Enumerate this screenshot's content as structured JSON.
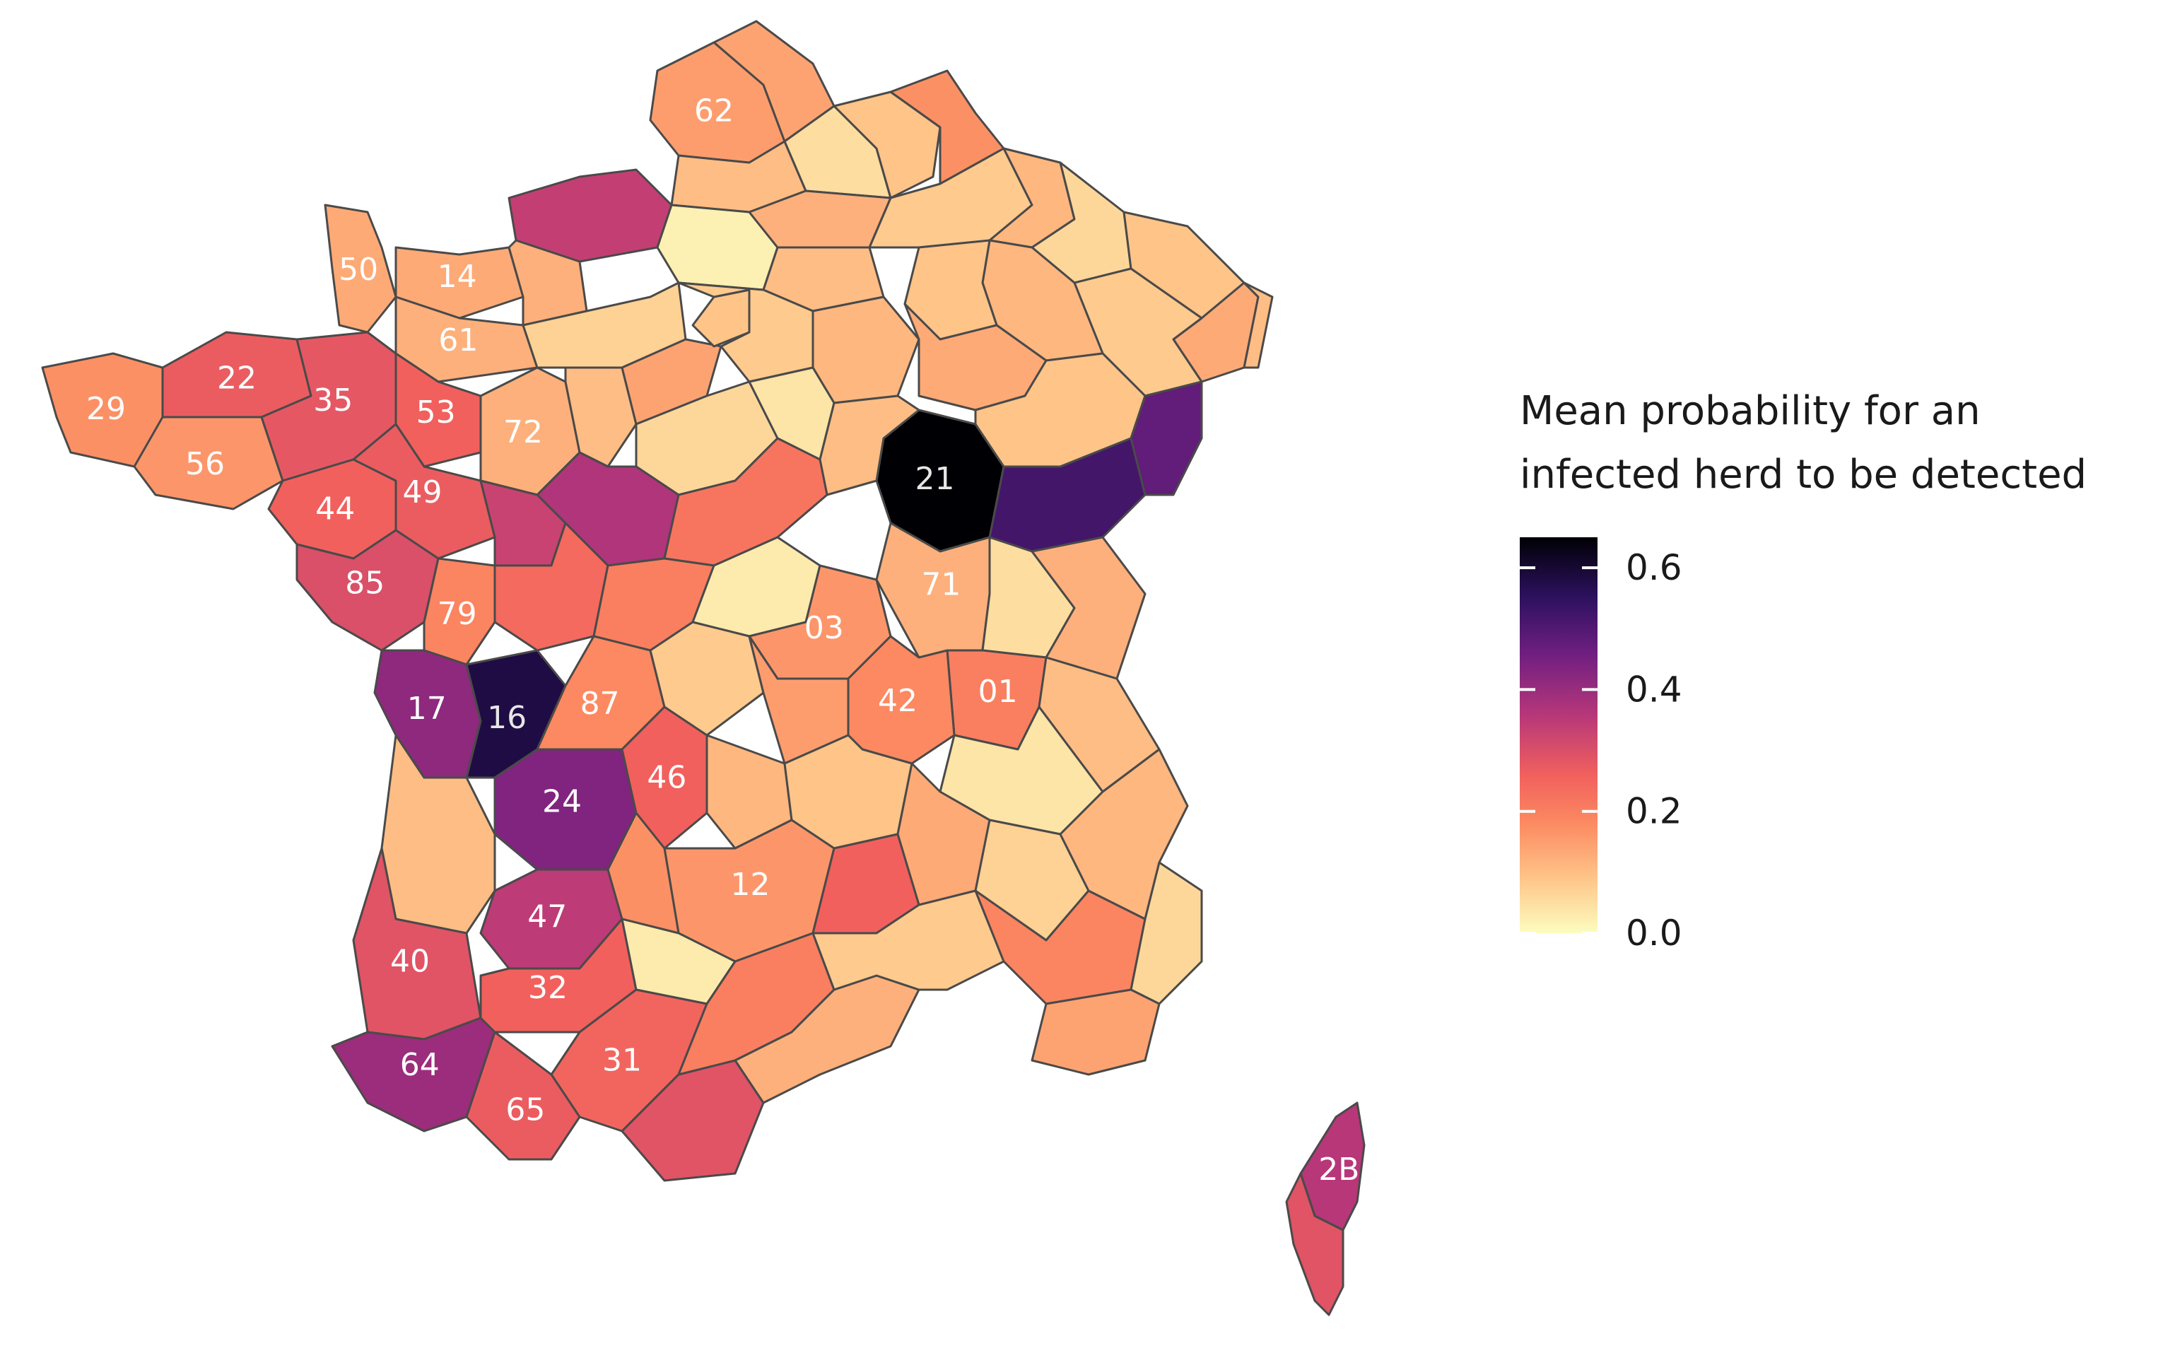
{
  "legend": {
    "title_line1": "Mean probability for an",
    "title_line2": "infected herd to be detected",
    "ticks": [
      "0.0",
      "0.2",
      "0.4",
      "0.6"
    ],
    "tick_values": [
      0.0,
      0.2,
      0.4,
      0.6
    ],
    "range": [
      0.0,
      0.65
    ],
    "colormap": "magma (reversed)",
    "colors": [
      "#fcfdbf",
      "#fec488",
      "#fc8961",
      "#f1605d",
      "#b73779",
      "#721f81",
      "#2c115f",
      "#000004"
    ]
  },
  "labeled_departments": [
    {
      "code": "62",
      "value": 0.15
    },
    {
      "code": "50",
      "value": 0.13
    },
    {
      "code": "14",
      "value": 0.13
    },
    {
      "code": "61",
      "value": 0.12
    },
    {
      "code": "22",
      "value": 0.27
    },
    {
      "code": "29",
      "value": 0.17
    },
    {
      "code": "35",
      "value": 0.28
    },
    {
      "code": "53",
      "value": 0.26
    },
    {
      "code": "56",
      "value": 0.16
    },
    {
      "code": "72",
      "value": 0.12
    },
    {
      "code": "44",
      "value": 0.26
    },
    {
      "code": "49",
      "value": 0.27
    },
    {
      "code": "85",
      "value": 0.3
    },
    {
      "code": "79",
      "value": 0.19
    },
    {
      "code": "21",
      "value": 0.65
    },
    {
      "code": "71",
      "value": 0.12
    },
    {
      "code": "03",
      "value": 0.16
    },
    {
      "code": "01",
      "value": 0.2
    },
    {
      "code": "17",
      "value": 0.42
    },
    {
      "code": "16",
      "value": 0.58
    },
    {
      "code": "87",
      "value": 0.18
    },
    {
      "code": "42",
      "value": 0.18
    },
    {
      "code": "24",
      "value": 0.44
    },
    {
      "code": "46",
      "value": 0.26
    },
    {
      "code": "12",
      "value": 0.16
    },
    {
      "code": "47",
      "value": 0.35
    },
    {
      "code": "40",
      "value": 0.29
    },
    {
      "code": "32",
      "value": 0.26
    },
    {
      "code": "31",
      "value": 0.25
    },
    {
      "code": "64",
      "value": 0.4
    },
    {
      "code": "65",
      "value": 0.27
    },
    {
      "code": "2B",
      "value": 0.36
    }
  ],
  "unlabeled_departments": [
    {
      "value": 0.14
    },
    {
      "value": 0.1
    },
    {
      "value": 0.05
    },
    {
      "value": 0.09
    },
    {
      "value": 0.17
    },
    {
      "value": 0.34
    },
    {
      "value": 0.02
    },
    {
      "value": 0.12
    },
    {
      "value": 0.1
    },
    {
      "value": 0.08
    },
    {
      "value": 0.11
    },
    {
      "value": 0.06
    },
    {
      "value": 0.09
    },
    {
      "value": 0.13
    },
    {
      "value": 0.1
    },
    {
      "value": 0.08
    },
    {
      "value": 0.11
    },
    {
      "value": 0.09
    },
    {
      "value": 0.12
    },
    {
      "value": 0.07
    },
    {
      "value": 0.1
    },
    {
      "value": 0.14
    },
    {
      "value": 0.09
    },
    {
      "value": 0.08
    },
    {
      "value": 0.06
    },
    {
      "value": 0.11
    },
    {
      "value": 0.04
    },
    {
      "value": 0.13
    },
    {
      "value": 0.1
    },
    {
      "value": 0.09
    },
    {
      "value": 0.52
    },
    {
      "value": 0.48
    },
    {
      "value": 0.37
    },
    {
      "value": 0.22
    },
    {
      "value": 0.33
    },
    {
      "value": 0.24
    },
    {
      "value": 0.2
    },
    {
      "value": 0.03
    },
    {
      "value": 0.05
    },
    {
      "value": 0.12
    },
    {
      "value": 0.1
    },
    {
      "value": 0.08
    },
    {
      "value": 0.15
    },
    {
      "value": 0.04
    },
    {
      "value": 0.11
    },
    {
      "value": 0.09
    },
    {
      "value": 0.13
    },
    {
      "value": 0.07
    },
    {
      "value": 0.1
    },
    {
      "value": 0.26
    },
    {
      "value": 0.17
    },
    {
      "value": 0.03
    },
    {
      "value": 0.29
    },
    {
      "value": 0.2
    },
    {
      "value": 0.12
    },
    {
      "value": 0.08
    },
    {
      "value": 0.19
    },
    {
      "value": 0.11
    },
    {
      "value": 0.06
    },
    {
      "value": 0.14
    }
  ]
}
